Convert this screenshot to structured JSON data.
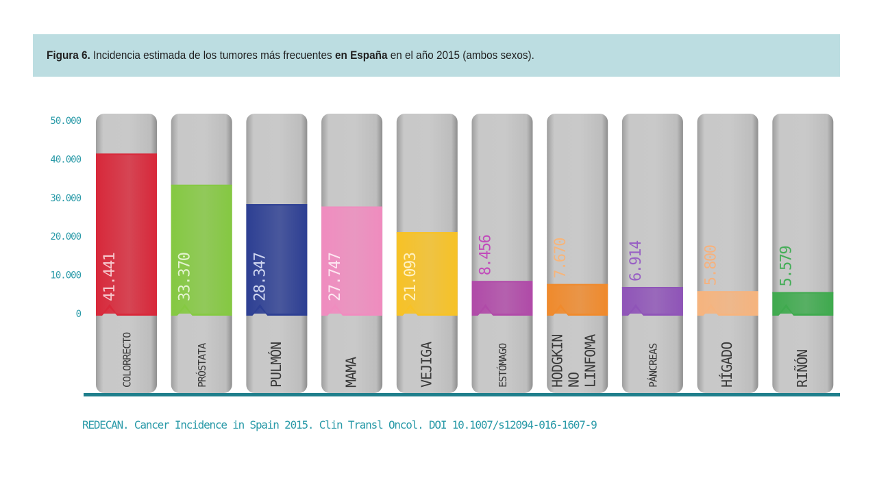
{
  "title": {
    "prefix": "Figura 6.",
    "text_before": " Incidencia estimada de los tumores más frecuentes ",
    "emphasis": "en España",
    "text_after": " en el año 2015 (ambos sexos)."
  },
  "source": "REDECAN. Cancer Incidence in Spain 2015. Clin Transl Oncol. DOI 10.1007/s12094-016-1607-9",
  "colors": {
    "axis_text": "#2a9aa8",
    "baseline": "#1f7f8c",
    "tube": "#c4c4c4",
    "tube_edge": "#9a9a9a",
    "title_band": "#bcdde1"
  },
  "chart_data": {
    "type": "bar",
    "ylim": [
      0,
      50000
    ],
    "yticks": [
      {
        "value": 50000,
        "label": "50.000"
      },
      {
        "value": 40000,
        "label": "40.000"
      },
      {
        "value": 30000,
        "label": "30.000"
      },
      {
        "value": 20000,
        "label": "20.000"
      },
      {
        "value": 10000,
        "label": "10.000"
      },
      {
        "value": 0,
        "label": "0"
      }
    ],
    "categories": [
      "COLORRECTO",
      "PRÓSTATA",
      "PULMÓN",
      "MAMA",
      "VEJIGA",
      "ESTÓMAGO",
      "LINFOMA NO HODGKIN",
      "PÁNCREAS",
      "HÍGADO",
      "RIÑÓN"
    ],
    "category_lines": [
      [
        "COLORRECTO"
      ],
      [
        "PRÓSTATA"
      ],
      [
        "PULMÓN"
      ],
      [
        "MAMA"
      ],
      [
        "VEJIGA"
      ],
      [
        "ESTÓMAGO"
      ],
      [
        "LINFOMA",
        "NO",
        "HODGKIN"
      ],
      [
        "PÁNCREAS"
      ],
      [
        "HÍGADO"
      ],
      [
        "RIÑÓN"
      ]
    ],
    "values": [
      41441,
      33370,
      28347,
      27747,
      21093,
      8456,
      7670,
      6914,
      5800,
      5579
    ],
    "value_labels": [
      "41.441",
      "33.370",
      "28.347",
      "27.747",
      "21.093",
      "8.456",
      "7.670",
      "6.914",
      "5.800",
      "5.579"
    ],
    "bar_colors": [
      "#d8283a",
      "#85c942",
      "#2d3f93",
      "#f08cbf",
      "#f7c226",
      "#b04aa8",
      "#f08a2c",
      "#8f54b8",
      "#f6b47e",
      "#3faa4e"
    ],
    "label_colors": [
      "#f6c7cc",
      "#e3f3cf",
      "#cfd6f0",
      "#fde6f1",
      "#fff1c2",
      "#c14cbb",
      "#f6b57b",
      "#9860c4",
      "#f5b27f",
      "#45ad58"
    ],
    "label_inside": [
      true,
      true,
      true,
      true,
      true,
      false,
      false,
      false,
      false,
      false
    ]
  }
}
